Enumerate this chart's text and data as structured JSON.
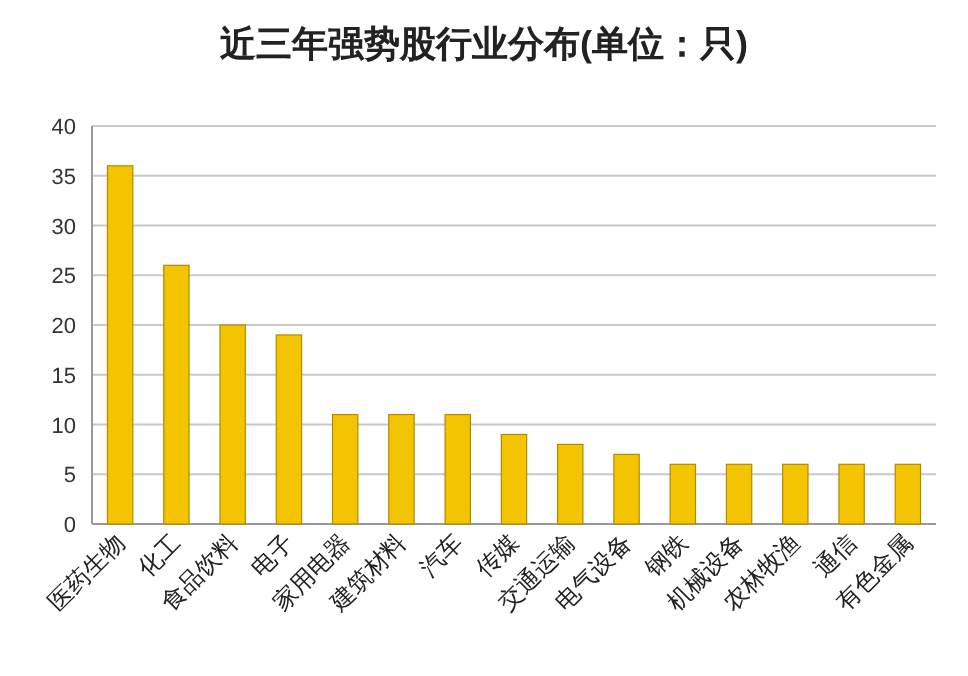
{
  "chart_data": {
    "type": "bar",
    "title": "近三年强势股行业分布(单位：只)",
    "categories": [
      "医药生物",
      "化工",
      "食品饮料",
      "电子",
      "家用电器",
      "建筑材料",
      "汽车",
      "传媒",
      "交通运输",
      "电气设备",
      "钢铁",
      "机械设备",
      "农林牧渔",
      "通信",
      "有色金属"
    ],
    "values": [
      36,
      26,
      20,
      19,
      11,
      11,
      11,
      9,
      8,
      7,
      6,
      6,
      6,
      6,
      6
    ],
    "color": "#f5c400",
    "ylim": [
      0,
      40
    ],
    "yticks": [
      0,
      5,
      10,
      15,
      20,
      25,
      30,
      35,
      40
    ],
    "grid": "y"
  }
}
